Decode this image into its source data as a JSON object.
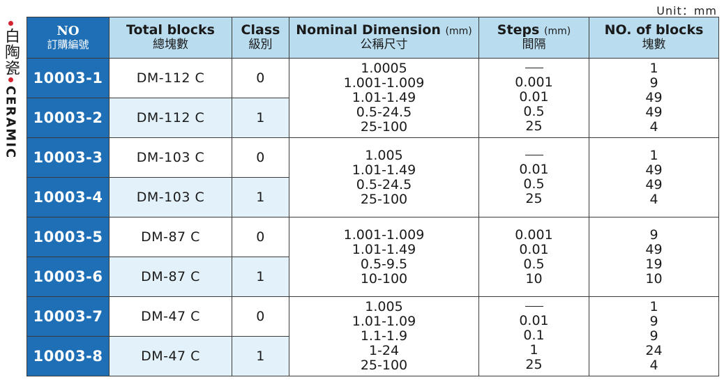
{
  "unit_label": "Unit：mm",
  "side_label": {
    "chinese": "白陶瓷",
    "english": "CERAMIC"
  },
  "headers": {
    "no": {
      "en": "NO",
      "cn": "訂購編號"
    },
    "total_blocks": {
      "en": "Total blocks",
      "cn": "總塊數"
    },
    "class": {
      "en": "Class",
      "cn": "級別"
    },
    "nominal_dimension": {
      "en": "Nominal Dimension",
      "unit": "(mm)",
      "cn": "公稱尺寸"
    },
    "steps": {
      "en": "Steps",
      "unit": "(mm)",
      "cn": "間隔"
    },
    "no_of_blocks": {
      "en": "NO. of blocks",
      "cn": "塊數"
    }
  },
  "rows": [
    {
      "code": "10003-1",
      "model": "DM-112 C",
      "class": "0"
    },
    {
      "code": "10003-2",
      "model": "DM-112 C",
      "class": "1"
    },
    {
      "code": "10003-3",
      "model": "DM-103 C",
      "class": "0"
    },
    {
      "code": "10003-4",
      "model": "DM-103 C",
      "class": "1"
    },
    {
      "code": "10003-5",
      "model": "DM-87 C",
      "class": "0"
    },
    {
      "code": "10003-6",
      "model": "DM-87 C",
      "class": "1"
    },
    {
      "code": "10003-7",
      "model": "DM-47 C",
      "class": "0"
    },
    {
      "code": "10003-8",
      "model": "DM-47 C",
      "class": "1"
    }
  ],
  "groups": [
    {
      "dimensions": [
        "1.0005",
        "1.001-1.009",
        "1.01-1.49",
        "0.5-24.5",
        "25-100"
      ],
      "steps": [
        "—",
        "0.001",
        "0.01",
        "0.5",
        "25"
      ],
      "blocks": [
        "1",
        "9",
        "49",
        "49",
        "4"
      ]
    },
    {
      "dimensions": [
        "1.005",
        "1.01-1.49",
        "0.5-24.5",
        "25-100"
      ],
      "steps": [
        "—",
        "0.01",
        "0.5",
        "25"
      ],
      "blocks": [
        "1",
        "49",
        "49",
        "4"
      ]
    },
    {
      "dimensions": [
        "1.001-1.009",
        "1.01-1.49",
        "0.5-9.5",
        "10-100"
      ],
      "steps": [
        "0.001",
        "0.01",
        "0.5",
        "10"
      ],
      "blocks": [
        "9",
        "49",
        "19",
        "10"
      ]
    },
    {
      "dimensions": [
        "1.005",
        "1.01-1.09",
        "1.1-1.9",
        "1-24",
        "25-100"
      ],
      "steps": [
        "—",
        "0.01",
        "0.1",
        "1",
        "25"
      ],
      "blocks": [
        "1",
        "9",
        "9",
        "24",
        "4"
      ]
    }
  ],
  "colors": {
    "header_blue": "#1e6fb6",
    "header_light": "#b9dcee",
    "row_tint": "#e2f1fa",
    "accent_dot": "#d5232f"
  }
}
